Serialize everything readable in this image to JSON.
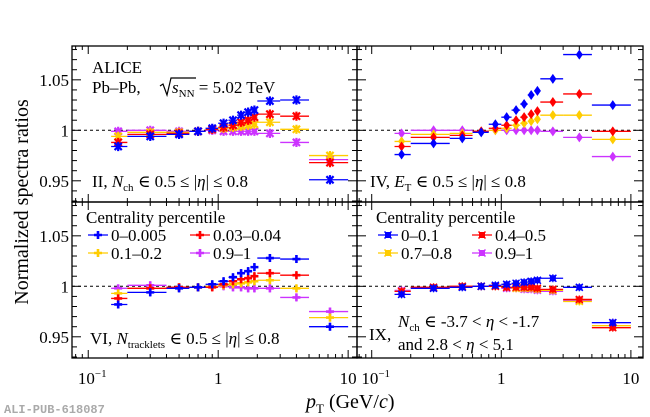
{
  "chart_data": {
    "type": "scatter",
    "ylabel": "Normalized spectra ratios",
    "xlabel_main": "p",
    "xlabel_sub": "T",
    "xlabel_unit_pre": " (GeV/",
    "xlabel_unit_c": "c",
    "xlabel_unit_post": ")",
    "xscale": "log",
    "xlim_left": [
      0.075,
      11.7
    ],
    "xlim_right": [
      0.077,
      12.4
    ],
    "ylim_top": [
      0.929,
      1.0835
    ],
    "ylim_bottom": [
      0.929,
      1.0835
    ],
    "yticks": [
      "1.05",
      "1",
      "0.95"
    ],
    "ytick_values": [
      1.05,
      1.0,
      0.95
    ],
    "xticks_left": [
      {
        "value": 0.1,
        "base": "10",
        "exp": "−1"
      },
      {
        "value": 1,
        "base": "1",
        "exp": ""
      },
      {
        "value": 10,
        "base": "10",
        "exp": ""
      }
    ],
    "xticks_right": [
      {
        "value": 0.1,
        "base": "10",
        "exp": "−1"
      },
      {
        "value": 1,
        "base": "1",
        "exp": ""
      },
      {
        "value": 10,
        "base": "10",
        "exp": ""
      }
    ],
    "reference_line": 1.0,
    "footer_label": "ALI-PUB-618087",
    "x": [
      0.17,
      0.3,
      0.5,
      0.7,
      0.9,
      1.1,
      1.3,
      1.5,
      1.7,
      1.9,
      2.5,
      4.0,
      7.25
    ],
    "x_err_low": [
      0.02,
      0.1,
      0.1,
      0.1,
      0.1,
      0.1,
      0.1,
      0.1,
      0.1,
      0.1,
      0.5,
      1.0,
      2.25
    ],
    "x_err_high": [
      0.03,
      0.1,
      0.1,
      0.1,
      0.1,
      0.1,
      0.1,
      0.1,
      0.1,
      0.1,
      0.5,
      1.0,
      2.75
    ],
    "panels": [
      {
        "id": "II",
        "position": "top-left",
        "marker": "star",
        "title_lines": [
          "ALICE",
          "Pb–Pb"
        ],
        "energy": {
          "prefix": "Pb–Pb, ",
          "s": "s",
          "sub": "NN",
          "value": " = 5.02 TeV"
        },
        "label": {
          "roman": "II, ",
          "var": "N",
          "sub": "ch",
          "cond": " ∈ 0.5 ≤ |",
          "eta": "η",
          "cond2": "| ≤ 0.8"
        },
        "series": [
          {
            "name": "0–0.005",
            "color": "#0000ff",
            "values": [
              0.984,
              0.994,
              0.996,
              0.999,
              1.002,
              1.007,
              1.01,
              1.015,
              1.018,
              1.02,
              1.029,
              1.03,
              0.951
            ]
          },
          {
            "name": "0.03–0.04",
            "color": "#ff0000",
            "values": [
              0.988,
              0.996,
              0.997,
              0.999,
              1.001,
              1.003,
              1.005,
              1.008,
              1.01,
              1.013,
              1.016,
              1.014,
              0.968
            ]
          },
          {
            "name": "0.1–0.2",
            "color": "#ffcc00",
            "values": [
              0.994,
              0.998,
              0.998,
              0.999,
              1.001,
              1.002,
              1.003,
              1.004,
              1.005,
              1.006,
              1.008,
              1.001,
              0.975
            ]
          },
          {
            "name": "0.9–1",
            "color": "#cc33ff",
            "values": [
              0.999,
              1.0,
              0.999,
              0.999,
              1.0,
              0.999,
              0.999,
              0.999,
              0.999,
              0.999,
              0.997,
              0.988,
              0.971
            ]
          }
        ]
      },
      {
        "id": "IV",
        "position": "top-right",
        "marker": "diamond",
        "label": {
          "roman": "IV, ",
          "var": "E",
          "sub": "T",
          "cond": " ∈ 0.5 ≤ |",
          "eta": "η",
          "cond2": "| ≤ 0.8"
        },
        "series": [
          {
            "name": "0–0.005",
            "color": "#0000ff",
            "values": [
              0.976,
              0.987,
              0.992,
              0.998,
              1.006,
              1.013,
              1.02,
              1.026,
              1.035,
              1.039,
              1.051,
              1.075,
              1.025
            ]
          },
          {
            "name": "0.03–0.04",
            "color": "#ff0000",
            "values": [
              0.984,
              0.993,
              0.995,
              0.999,
              1.002,
              1.005,
              1.01,
              1.013,
              1.016,
              1.019,
              1.028,
              1.036,
              0.999
            ]
          },
          {
            "name": "0.1–0.2",
            "color": "#ffcc00",
            "values": [
              0.989,
              0.996,
              0.997,
              0.999,
              1.0,
              1.002,
              1.005,
              1.007,
              1.009,
              1.011,
              1.015,
              1.015,
              0.991
            ]
          },
          {
            "name": "0.9–1",
            "color": "#cc33ff",
            "values": [
              0.997,
              1.0,
              1.0,
              0.999,
              1.0,
              1.0,
              1.0,
              1.0,
              1.0,
              1.0,
              0.999,
              0.993,
              0.974
            ]
          }
        ]
      },
      {
        "id": "VI",
        "position": "bottom-left",
        "marker": "cross",
        "legend_title": "Centrality percentile",
        "label": {
          "roman": "VI, ",
          "var": "N",
          "sub": "tracklets",
          "cond": " ∈ 0.5 ≤ |",
          "eta": "η",
          "cond2": "| ≤ 0.8"
        },
        "series": [
          {
            "name": "0–0.005",
            "color": "#0000ff",
            "values": [
              0.982,
              0.994,
              0.998,
              0.999,
              1.002,
              1.005,
              1.009,
              1.013,
              1.015,
              1.019,
              1.028,
              1.027,
              0.96
            ]
          },
          {
            "name": "0.03–0.04",
            "color": "#ff0000",
            "values": [
              0.988,
              0.998,
              0.999,
              0.999,
              0.999,
              1.002,
              1.005,
              1.007,
              1.008,
              1.01,
              1.013,
              1.011,
              null
            ]
          },
          {
            "name": "0.1–0.2",
            "color": "#ffcc00",
            "values": [
              0.993,
              0.998,
              0.999,
              0.999,
              1.0,
              1.001,
              1.002,
              1.003,
              1.004,
              1.005,
              1.006,
              0.998,
              0.969
            ]
          },
          {
            "name": "0.9–1",
            "color": "#cc33ff",
            "values": [
              0.998,
              1.001,
              0.999,
              0.999,
              1.0,
              1.0,
              0.999,
              0.999,
              0.998,
              0.998,
              0.998,
              0.989,
              0.975
            ]
          }
        ]
      },
      {
        "id": "IX",
        "position": "bottom-right",
        "marker": "x-square",
        "legend_title": "Centrality percentile",
        "label": {
          "roman": "IX, ",
          "var": "N",
          "sub": "ch",
          "line1": " ∈ -3.7 < ",
          "eta": "η",
          "line1b": " < -1.7",
          "line2a": "and 2.8 < ",
          "line2b": " < 5.1"
        },
        "series": [
          {
            "name": "0–0.1",
            "color": "#0000ff",
            "values": [
              0.992,
              0.998,
              0.999,
              1.0,
              1.001,
              1.002,
              1.003,
              1.004,
              1.005,
              1.006,
              1.008,
              0.999,
              0.964
            ]
          },
          {
            "name": "0.4–0.5",
            "color": "#ff0000",
            "values": [
              0.995,
              0.999,
              1.0,
              1.0,
              1.0,
              0.999,
              0.999,
              0.999,
              0.999,
              0.998,
              0.997,
              0.987,
              0.959
            ]
          },
          {
            "name": "0.7–0.8",
            "color": "#ffcc00",
            "values": [
              0.995,
              0.999,
              1.0,
              1.0,
              1.0,
              0.999,
              0.998,
              0.998,
              0.998,
              0.997,
              0.996,
              0.985,
              0.961
            ]
          },
          {
            "name": "0.9–1",
            "color": "#cc33ff",
            "values": [
              0.996,
              0.999,
              1.0,
              1.0,
              1.0,
              0.998,
              0.998,
              0.997,
              0.997,
              0.996,
              0.995,
              0.986,
              0.964
            ]
          }
        ]
      }
    ]
  }
}
